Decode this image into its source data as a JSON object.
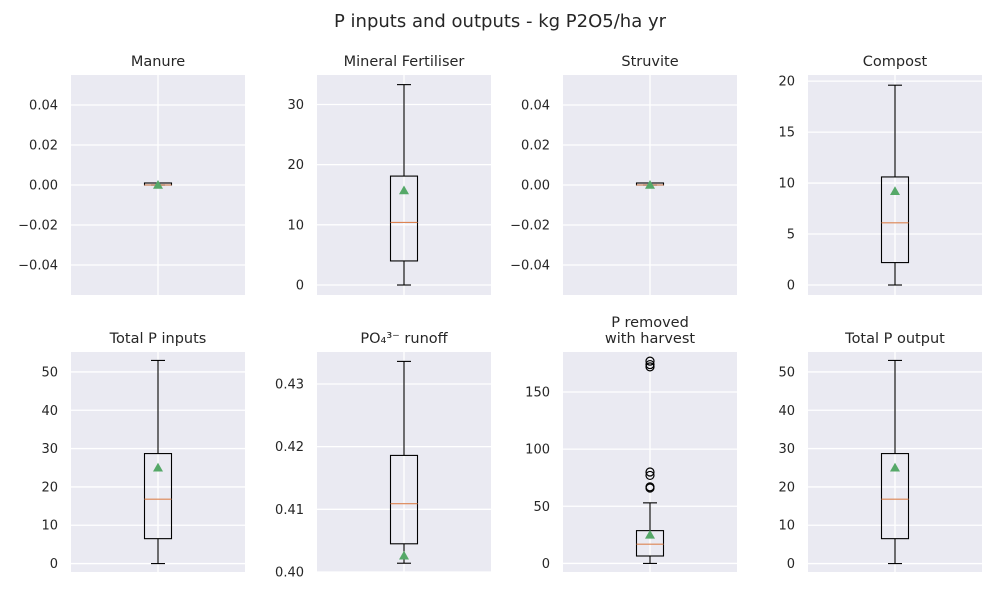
{
  "figure": {
    "title": "P inputs and outputs - kg P2O5/ha yr",
    "background": "#eaeaf2",
    "grid_color": "#ffffff",
    "box_color": "#000000",
    "median_color": "#dd8452",
    "mean_color": "#55a868"
  },
  "chart_data": [
    {
      "type": "box",
      "title": [
        "Manure"
      ],
      "grid": true,
      "ylim": [
        -0.055,
        0.055
      ],
      "yticks": [
        -0.04,
        -0.02,
        0.0,
        0.02,
        0.04
      ],
      "ytick_labels": [
        "−0.04",
        "−0.02",
        "0.00",
        "0.02",
        "0.04"
      ],
      "box": {
        "whisker_low": 0,
        "q1": 0,
        "median": 0,
        "q3": 0,
        "whisker_high": 0,
        "mean": 0,
        "outliers": []
      }
    },
    {
      "type": "box",
      "title": [
        "Mineral Fertiliser"
      ],
      "grid": true,
      "ylim": [
        -1.66,
        34.9
      ],
      "yticks": [
        0,
        10,
        20,
        30
      ],
      "ytick_labels": [
        "0",
        "10",
        "20",
        "30"
      ],
      "box": {
        "whisker_low": 0,
        "q1": 4.0,
        "median": 10.4,
        "q3": 18.1,
        "whisker_high": 33.3,
        "mean": 15.7,
        "outliers": []
      }
    },
    {
      "type": "box",
      "title": [
        "Struvite"
      ],
      "grid": true,
      "ylim": [
        -0.055,
        0.055
      ],
      "yticks": [
        -0.04,
        -0.02,
        0.0,
        0.02,
        0.04
      ],
      "ytick_labels": [
        "−0.04",
        "−0.02",
        "0.00",
        "0.02",
        "0.04"
      ],
      "box": {
        "whisker_low": 0,
        "q1": 0,
        "median": 0,
        "q3": 0,
        "whisker_high": 0,
        "mean": 0,
        "outliers": []
      }
    },
    {
      "type": "box",
      "title": [
        "Compost"
      ],
      "grid": true,
      "ylim": [
        -0.98,
        20.6
      ],
      "yticks": [
        0,
        5,
        10,
        15,
        20
      ],
      "ytick_labels": [
        "0",
        "5",
        "10",
        "15",
        "20"
      ],
      "box": {
        "whisker_low": 0,
        "q1": 2.2,
        "median": 6.1,
        "q3": 10.6,
        "whisker_high": 19.6,
        "mean": 9.2,
        "outliers": []
      }
    },
    {
      "type": "box",
      "title": [
        "Total P inputs"
      ],
      "grid": true,
      "ylim": [
        -2.2,
        55.2
      ],
      "yticks": [
        0,
        10,
        20,
        30,
        40,
        50
      ],
      "ytick_labels": [
        "0",
        "10",
        "20",
        "30",
        "40",
        "50"
      ],
      "box": {
        "whisker_low": 0,
        "q1": 6.5,
        "median": 16.8,
        "q3": 28.7,
        "whisker_high": 53.0,
        "mean": 25.0,
        "outliers": []
      }
    },
    {
      "type": "box",
      "title": [
        "PO₄³⁻ runoff"
      ],
      "grid": true,
      "ylim": [
        0.4,
        0.4351
      ],
      "yticks": [
        0.4,
        0.41,
        0.42,
        0.43
      ],
      "ytick_labels": [
        "0.40",
        "0.41",
        "0.42",
        "0.43"
      ],
      "box": {
        "whisker_low": 0.4014,
        "q1": 0.4045,
        "median": 0.4109,
        "q3": 0.4186,
        "whisker_high": 0.4336,
        "mean": 0.4026,
        "outliers": []
      }
    },
    {
      "type": "box",
      "title": [
        "P removed",
        "with harvest"
      ],
      "grid": true,
      "ylim": [
        -7.5,
        185
      ],
      "yticks": [
        0,
        50,
        100,
        150
      ],
      "ytick_labels": [
        "0",
        "50",
        "100",
        "150"
      ],
      "box": {
        "whisker_low": 0,
        "q1": 6.5,
        "median": 16.8,
        "q3": 28.7,
        "whisker_high": 53.0,
        "mean": 25.0,
        "outliers": [
          66,
          67,
          77,
          80,
          172,
          174,
          177
        ]
      }
    },
    {
      "type": "box",
      "title": [
        "Total P output"
      ],
      "grid": true,
      "ylim": [
        -2.2,
        55.2
      ],
      "yticks": [
        0,
        10,
        20,
        30,
        40,
        50
      ],
      "ytick_labels": [
        "0",
        "10",
        "20",
        "30",
        "40",
        "50"
      ],
      "box": {
        "whisker_low": 0,
        "q1": 6.5,
        "median": 16.8,
        "q3": 28.7,
        "whisker_high": 53.0,
        "mean": 25.0,
        "outliers": []
      }
    }
  ]
}
